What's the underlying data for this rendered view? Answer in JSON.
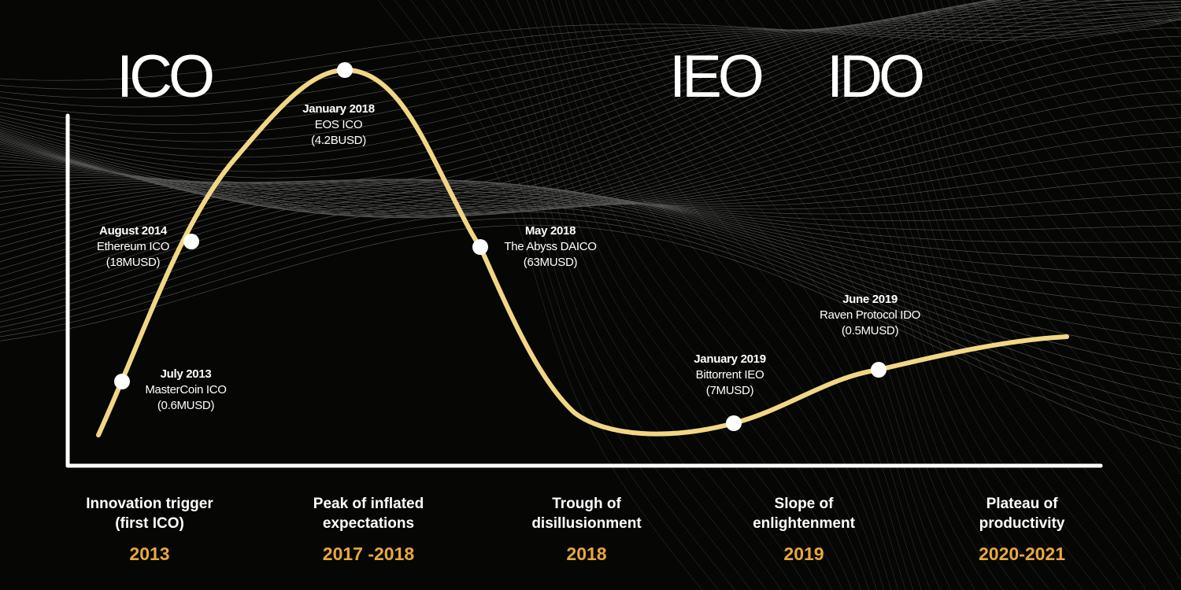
{
  "colors": {
    "background": "#060605",
    "curve": "#f1d785",
    "axis": "#ffffff",
    "year": "#e9a83c",
    "mesh": "#9a9a9a"
  },
  "headings": [
    "ICO",
    "IEO",
    "IDO"
  ],
  "milestones": [
    {
      "date": "July 2013",
      "lines": [
        "MasterCoin ICO",
        "(0.6MUSD)"
      ]
    },
    {
      "date": "August 2014",
      "lines": [
        "Ethereum ICO",
        "(18MUSD)"
      ]
    },
    {
      "date": "January 2018",
      "lines": [
        "EOS ICO",
        "(4.2BUSD)"
      ]
    },
    {
      "date": "May 2018",
      "lines": [
        "The Abyss DAICO",
        "(63MUSD)"
      ]
    },
    {
      "date": "January 2019",
      "lines": [
        "Bittorrent IEO",
        "(7MUSD)"
      ]
    },
    {
      "date": "June 2019",
      "lines": [
        "Raven Protocol IDO",
        "(0.5MUSD)"
      ]
    }
  ],
  "phases": [
    {
      "lines": [
        "Innovation trigger",
        "(first ICO)"
      ],
      "year": "2013"
    },
    {
      "lines": [
        "Peak of inflated",
        "expectations"
      ],
      "year": "2017 -2018"
    },
    {
      "lines": [
        "Trough of",
        "disillusionment"
      ],
      "year": "2018"
    },
    {
      "lines": [
        "Slope of",
        "enlightenment"
      ],
      "year": "2019"
    },
    {
      "lines": [
        "Plateau of",
        "productivity"
      ],
      "year": "2020-2021"
    }
  ]
}
